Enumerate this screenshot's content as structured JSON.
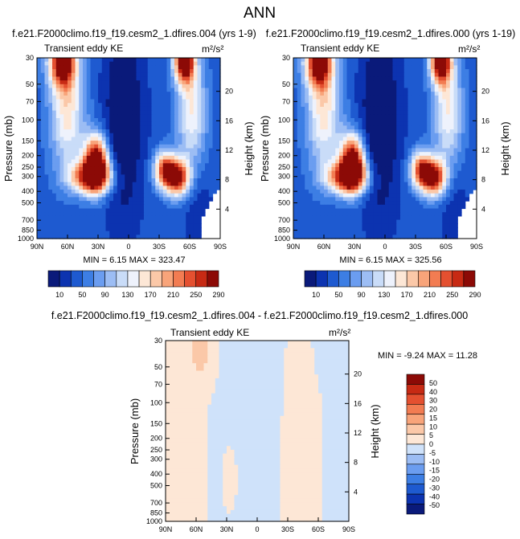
{
  "page_title": "ANN",
  "colors": {
    "absolute_scale": [
      "#0a1a7a",
      "#0c33b0",
      "#1e5ad0",
      "#3d7ee4",
      "#6b9df0",
      "#9cbdf4",
      "#c9dcf8",
      "#eef2fc",
      "#fde7d6",
      "#fbc8a8",
      "#f8a47a",
      "#f27c52",
      "#e45030",
      "#c72a14",
      "#8c0a06"
    ],
    "difference_scale": [
      "#0a1a7a",
      "#0c33b0",
      "#1e5ad0",
      "#3d7ee4",
      "#6b9df0",
      "#9cbdf4",
      "#cfe2fa",
      "#fde7d6",
      "#fbc8a8",
      "#f8a47a",
      "#f27c52",
      "#e45030",
      "#c72a14",
      "#8c0a06"
    ]
  },
  "chart_data": [
    {
      "type": "heatmap",
      "title": "f.e21.F2000climo.f19_f19.cesm2_1.dfires.004 (yrs 1-9)",
      "subtitle_left": "Transient eddy KE",
      "units": "m²/s²",
      "xlabel": "",
      "ylabel": "Pressure (mb)",
      "ylabel_right": "Height (km)",
      "x_ticks": [
        "90N",
        "60N",
        "30N",
        "0",
        "30S",
        "60S",
        "90S"
      ],
      "y_ticks": [
        "30",
        "50",
        "70",
        "100",
        "150",
        "200",
        "250",
        "300",
        "400",
        "500",
        "700",
        "850",
        "1000"
      ],
      "y_right_ticks": [
        "20",
        "16",
        "12",
        "8",
        "4"
      ],
      "y_scale": "log",
      "stats": "MIN =  6.15  MAX = 323.47",
      "levels": [
        "10",
        "50",
        "90",
        "130",
        "170",
        "210",
        "250",
        "290"
      ],
      "field": "abs4",
      "colorbar": "horizontal"
    },
    {
      "type": "heatmap",
      "title": "f.e21.F2000climo.f19_f19.cesm2_1.dfires.000 (yrs 1-19)",
      "subtitle_left": "Transient eddy KE",
      "units": "m²/s²",
      "xlabel": "",
      "ylabel": "Pressure (mb)",
      "ylabel_right": "Height (km)",
      "x_ticks": [
        "90N",
        "60N",
        "30N",
        "0",
        "30S",
        "60S",
        "90S"
      ],
      "y_ticks": [
        "30",
        "50",
        "70",
        "100",
        "150",
        "200",
        "250",
        "300",
        "400",
        "500",
        "700",
        "850",
        "1000"
      ],
      "y_right_ticks": [
        "20",
        "16",
        "12",
        "8",
        "4"
      ],
      "y_scale": "log",
      "stats": "MIN =  6.15  MAX = 325.56",
      "levels": [
        "10",
        "50",
        "90",
        "130",
        "170",
        "210",
        "250",
        "290"
      ],
      "field": "abs0",
      "colorbar": "horizontal"
    },
    {
      "type": "heatmap",
      "title": "f.e21.F2000climo.f19_f19.cesm2_1.dfires.004 - f.e21.F2000climo.f19_f19.cesm2_1.dfires.000",
      "subtitle_left": "Transient eddy KE",
      "units": "m²/s²",
      "xlabel": "",
      "ylabel": "Pressure (mb)",
      "ylabel_right": "Height (km)",
      "x_ticks": [
        "90N",
        "60N",
        "30N",
        "0",
        "30S",
        "60S",
        "90S"
      ],
      "y_ticks": [
        "30",
        "50",
        "70",
        "100",
        "150",
        "200",
        "250",
        "300",
        "400",
        "500",
        "700",
        "850",
        "1000"
      ],
      "y_right_ticks": [
        "20",
        "16",
        "12",
        "8",
        "4"
      ],
      "y_scale": "log",
      "stats": "MIN = -9.24  MAX = 11.28",
      "levels": [
        "50",
        "40",
        "30",
        "20",
        "15",
        "10",
        "5",
        "0",
        "-5",
        "-10",
        "-15",
        "-20",
        "-30",
        "-40",
        "-50"
      ],
      "field": "diff",
      "colorbar": "vertical"
    }
  ]
}
